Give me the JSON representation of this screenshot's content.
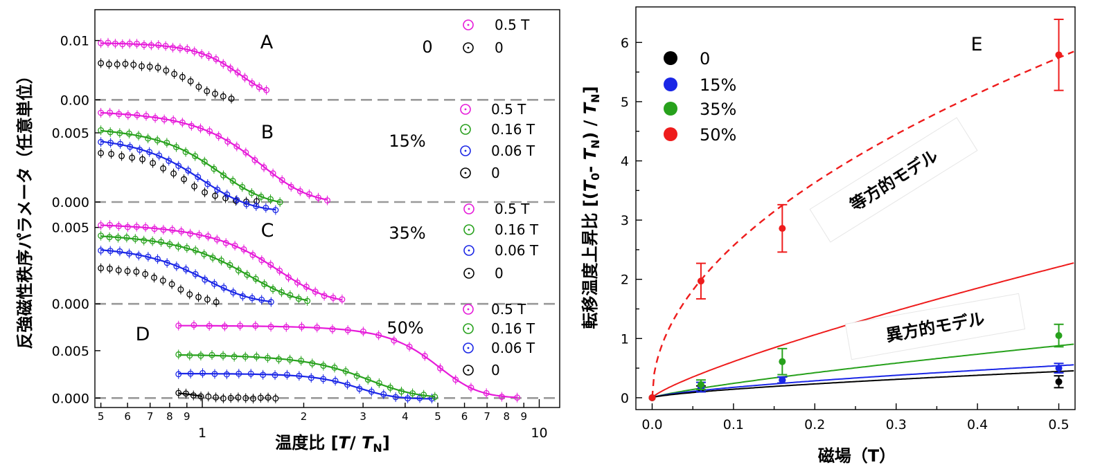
{
  "colors": {
    "pink": "#e61ad9",
    "green": "#27a11c",
    "blue": "#1a26e6",
    "black": "#000000",
    "red": "#ee1c1c",
    "zero_line": "#999999"
  },
  "chart_data": [
    {
      "type": "scatter",
      "subtype": "stacked-panels",
      "ylabel": "反強磁性秩序パラメータ（任意単位）",
      "xlabel": "温度比 [T/ T_N]",
      "xlabel_parts": [
        "温度比 [",
        "T",
        "/ ",
        "T",
        "N",
        "]"
      ],
      "x_scale": "log",
      "xlim": [
        0.48,
        11.5
      ],
      "x_major_ticks": [
        {
          "value": 1,
          "label": "1"
        },
        {
          "value": 10,
          "label": "10"
        }
      ],
      "x_minor_ticks": [
        {
          "value": 0.5,
          "label": "5"
        },
        {
          "value": 0.6,
          "label": "6"
        },
        {
          "value": 0.7,
          "label": "7"
        },
        {
          "value": 0.8,
          "label": "8"
        },
        {
          "value": 0.9,
          "label": "9"
        },
        {
          "value": 2,
          "label": "2"
        },
        {
          "value": 3,
          "label": "3"
        },
        {
          "value": 4,
          "label": "4"
        },
        {
          "value": 5,
          "label": "5"
        },
        {
          "value": 6,
          "label": "6"
        },
        {
          "value": 7,
          "label": "7"
        },
        {
          "value": 8,
          "label": "8"
        },
        {
          "value": 9,
          "label": "9"
        }
      ],
      "panels": [
        {
          "label": "A",
          "doping": "0",
          "ylim": [
            -0.0009,
            0.0152
          ],
          "y_ticks": [
            {
              "value": 0.0,
              "label": "0.00"
            },
            {
              "value": 0.01,
              "label": "0.01"
            }
          ],
          "series": [
            {
              "name": "0.5 T",
              "color": "#e61ad9",
              "x_start": 0.5,
              "x_end": 1.55,
              "fit_end": 1.55,
              "y0": 0.0097,
              "tn": 1.25,
              "w": 0.18,
              "tail": 0.0,
              "n": 24
            },
            {
              "name": "0",
              "color": "#000000",
              "x_start": 0.5,
              "x_end": 1.22,
              "fit_end": null,
              "y0": 0.0062,
              "tn": 0.92,
              "w": 0.1,
              "tail": 0.0,
              "n": 17
            }
          ]
        },
        {
          "label": "B",
          "doping": "15%",
          "ylim": [
            -0.0004,
            0.007
          ],
          "y_ticks": [
            {
              "value": 0.0,
              "label": "0.000"
            },
            {
              "value": 0.005,
              "label": "0.005"
            }
          ],
          "series": [
            {
              "name": "0.5 T",
              "color": "#e61ad9",
              "x_start": 0.5,
              "x_end": 2.35,
              "fit_end": 2.35,
              "y0": 0.0068,
              "tn": 1.38,
              "w": 0.3,
              "tail": -0.0001,
              "n": 26
            },
            {
              "name": "0.16 T",
              "color": "#27a11c",
              "x_start": 0.5,
              "x_end": 1.7,
              "fit_end": 1.7,
              "y0": 0.0056,
              "tn": 1.05,
              "w": 0.22,
              "tail": -0.0003,
              "n": 20
            },
            {
              "name": "0.06 T",
              "color": "#1a26e6",
              "x_start": 0.5,
              "x_end": 1.65,
              "fit_end": 1.65,
              "y0": 0.005,
              "tn": 0.92,
              "w": 0.2,
              "tail": -0.0007,
              "n": 19
            },
            {
              "name": "0",
              "color": "#000000",
              "x_start": 0.5,
              "x_end": 1.45,
              "fit_end": null,
              "y0": 0.0037,
              "tn": 0.85,
              "w": 0.12,
              "tail": 0.0,
              "n": 16
            }
          ]
        },
        {
          "label": "C",
          "doping": "35%",
          "ylim": [
            -0.0004,
            0.0063
          ],
          "y_ticks": [
            {
              "value": 0.0,
              "label": "0.000"
            },
            {
              "value": 0.005,
              "label": "0.005"
            }
          ],
          "series": [
            {
              "name": "0.5 T",
              "color": "#e61ad9",
              "x_start": 0.5,
              "x_end": 2.6,
              "fit_end": 2.6,
              "y0": 0.0054,
              "tn": 1.55,
              "w": 0.35,
              "tail": 0.0,
              "n": 28
            },
            {
              "name": "0.16 T",
              "color": "#27a11c",
              "x_start": 0.5,
              "x_end": 2.05,
              "fit_end": 2.05,
              "y0": 0.0048,
              "tn": 1.25,
              "w": 0.3,
              "tail": -0.0001,
              "n": 25
            },
            {
              "name": "0.06 T",
              "color": "#1a26e6",
              "x_start": 0.5,
              "x_end": 1.6,
              "fit_end": 1.6,
              "y0": 0.0039,
              "tn": 0.95,
              "w": 0.2,
              "tail": 0.0,
              "n": 19
            },
            {
              "name": "0",
              "color": "#000000",
              "x_start": 0.5,
              "x_end": 1.1,
              "fit_end": null,
              "y0": 0.0024,
              "tn": 0.82,
              "w": 0.1,
              "tail": 0.0,
              "n": 14
            }
          ]
        },
        {
          "label": "D",
          "doping": "50%",
          "ylim": [
            -0.001,
            0.0093
          ],
          "y_ticks": [
            {
              "value": 0.0,
              "label": "0.000"
            },
            {
              "value": 0.005,
              "label": "0.005"
            }
          ],
          "series": [
            {
              "name": "0.5 T",
              "color": "#e61ad9",
              "x_start": 0.85,
              "x_end": 8.6,
              "fit_end": 8.6,
              "y0": 0.0077,
              "tn": 4.8,
              "w": 0.8,
              "tail": 0.0,
              "n": 23
            },
            {
              "name": "0.16 T",
              "color": "#27a11c",
              "x_start": 0.85,
              "x_end": 4.9,
              "fit_end": 4.9,
              "y0": 0.0047,
              "tn": 2.9,
              "w": 0.6,
              "tail": 0.0,
              "n": 24
            },
            {
              "name": "0.06 T",
              "color": "#1a26e6",
              "x_start": 0.85,
              "x_end": 4.8,
              "fit_end": 4.8,
              "y0": 0.0026,
              "tn": 2.8,
              "w": 0.4,
              "tail": -0.0001,
              "n": 22
            },
            {
              "name": "0",
              "color": "#000000",
              "x_start": 0.85,
              "x_end": 1.65,
              "fit_end": 1.0,
              "y0": 0.0006,
              "tn": 0.95,
              "w": 0.06,
              "tail": 0.0,
              "n": 14
            }
          ]
        }
      ]
    },
    {
      "type": "scatter",
      "panel_label": "E",
      "title": "",
      "xlabel": "磁場（T）",
      "ylabel": "転移温度上昇比 [(T0- TN) / TN]",
      "ylabel_parts": [
        "転移温度上昇比 [(",
        "T",
        "0",
        "- ",
        "T",
        "N",
        ") / ",
        "T",
        "N",
        "]"
      ],
      "xlim": [
        -0.02,
        0.52
      ],
      "ylim": [
        -0.2,
        6.6
      ],
      "x_ticks": [
        0.0,
        0.1,
        0.2,
        0.3,
        0.4,
        0.5
      ],
      "x_tick_labels": [
        "0.0",
        "0.1",
        "0.2",
        "0.3",
        "0.4",
        "0.5"
      ],
      "y_ticks": [
        0,
        1,
        2,
        3,
        4,
        5,
        6
      ],
      "legend_position": "top-left",
      "series": [
        {
          "name": "0",
          "color": "#000000",
          "x": [
            0.0,
            0.06,
            0.16,
            0.5
          ],
          "y": [
            0.0,
            0.15,
            0.3,
            0.27
          ],
          "err": [
            0.05,
            0.05,
            0.05,
            0.1
          ]
        },
        {
          "name": "15%",
          "color": "#1a26e6",
          "x": [
            0.0,
            0.06,
            0.16,
            0.5
          ],
          "y": [
            0.0,
            0.18,
            0.3,
            0.5
          ],
          "err": [
            0.05,
            0.08,
            0.05,
            0.08
          ]
        },
        {
          "name": "35%",
          "color": "#27a11c",
          "x": [
            0.0,
            0.06,
            0.16,
            0.5
          ],
          "y": [
            0.0,
            0.22,
            0.61,
            1.05
          ],
          "err": [
            0.05,
            0.08,
            0.22,
            0.19
          ]
        },
        {
          "name": "50%",
          "color": "#ee1c1c",
          "x": [
            0.0,
            0.06,
            0.16,
            0.5
          ],
          "y": [
            0.0,
            1.97,
            2.86,
            5.79
          ],
          "err": [
            0.05,
            0.3,
            0.4,
            0.6
          ]
        }
      ],
      "fits": [
        {
          "model": "isotropic",
          "label": "等方的モデル",
          "style": "dashed",
          "color": "#ee1c1c",
          "a": 8.12,
          "p": 0.5
        },
        {
          "model": "anisotropic",
          "style": "solid",
          "color": "#ee1c1c",
          "a": 3.85,
          "p": 0.8
        },
        {
          "model": "anisotropic",
          "style": "solid",
          "color": "#27a11c",
          "a": 1.53,
          "p": 0.8
        },
        {
          "model": "anisotropic",
          "style": "solid",
          "color": "#1a26e6",
          "a": 0.88,
          "p": 0.7
        },
        {
          "model": "anisotropic",
          "label": "異方的モデル",
          "style": "solid",
          "color": "#000000",
          "a": 0.72,
          "p": 0.7
        }
      ]
    }
  ]
}
